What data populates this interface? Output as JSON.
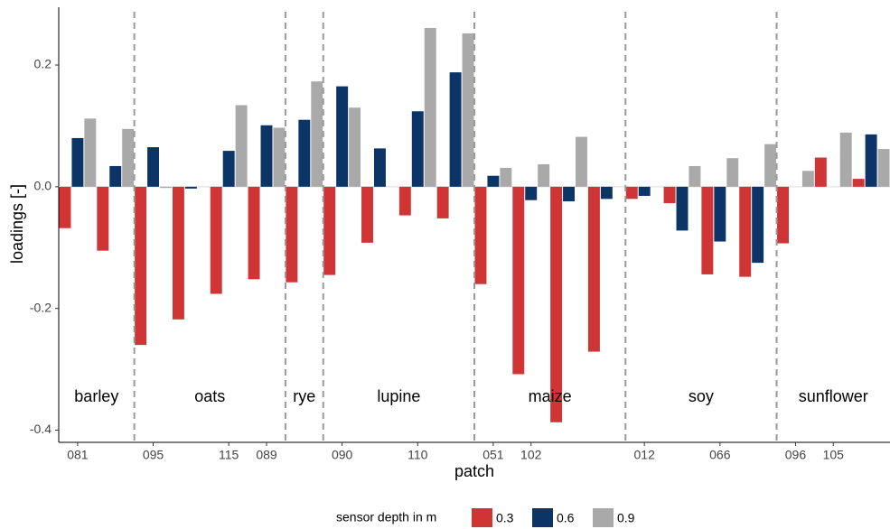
{
  "chart_data": {
    "type": "bar",
    "x_label": "patch",
    "y_label": "loadings [-]",
    "categories": [
      "081",
      null,
      "095",
      null,
      "115",
      "089",
      null,
      "090",
      null,
      "110",
      null,
      "051",
      "102",
      null,
      null,
      "012",
      null,
      "066",
      null,
      "096",
      "105",
      null
    ],
    "groups": [
      "barley",
      "oats",
      "rye",
      "lupine",
      "maize",
      "soy",
      "sunflower"
    ],
    "series": [
      {
        "name": "0.3",
        "color": "#d03536",
        "values": [
          -0.068,
          -0.105,
          -0.26,
          -0.218,
          -0.176,
          -0.152,
          -0.157,
          -0.145,
          -0.092,
          -0.047,
          -0.052,
          -0.16,
          -0.308,
          -0.387,
          -0.271,
          -0.02,
          -0.027,
          -0.144,
          -0.148,
          -0.093,
          0.048,
          0.013
        ]
      },
      {
        "name": "0.6",
        "color": "#0b3467",
        "values": [
          0.08,
          0.034,
          0.065,
          -0.003,
          0.059,
          0.101,
          0.11,
          0.165,
          0.063,
          0.124,
          0.188,
          0.018,
          -0.022,
          -0.024,
          -0.02,
          -0.015,
          -0.072,
          -0.09,
          -0.125,
          null,
          null,
          0.086
        ]
      },
      {
        "name": "0.9",
        "color": "#a9a9a9",
        "values": [
          0.112,
          0.095,
          -0.002,
          null,
          0.134,
          0.097,
          0.173,
          0.13,
          null,
          0.261,
          0.252,
          0.031,
          0.037,
          0.082,
          null,
          null,
          0.034,
          0.047,
          0.07,
          0.026,
          0.089,
          0.062
        ]
      }
    ],
    "legend_title": "sensor depth in m",
    "ylim": [
      -0.42,
      0.295
    ],
    "yticks": [
      {
        "value": -0.4,
        "label": "-0.4"
      },
      {
        "value": -0.2,
        "label": "-0.2"
      },
      {
        "value": 0,
        "label": "0.0"
      },
      {
        "value": 0.2,
        "label": "0.2"
      }
    ],
    "grid": false
  }
}
